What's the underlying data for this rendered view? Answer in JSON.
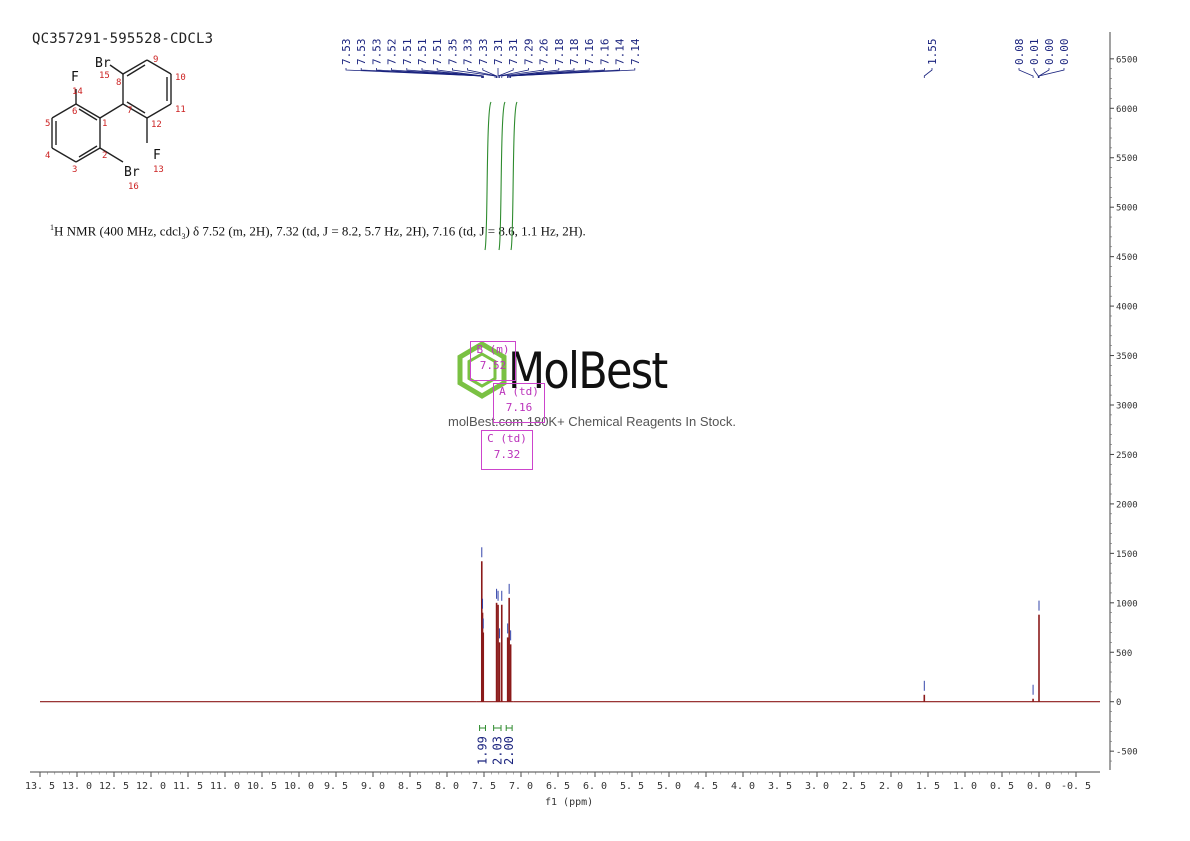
{
  "sample_id": "QC357291-595528-CDCL3",
  "description": {
    "prefix": "1",
    "text": "H NMR (400 MHz, cdcl",
    "sub": "3",
    "rest": ") δ 7.52 (m, 2H), 7.32 (td, J = 8.2, 5.7 Hz, 2H), 7.16 (td, J = 8.6, 1.1 Hz, 2H)."
  },
  "watermark": {
    "logo": "MolBest",
    "tagline": "molBest.com 180K+ Chemical Reagents In Stock."
  },
  "structure": {
    "atoms": [
      "F",
      "14",
      "6",
      "5",
      "4",
      "3",
      "2",
      "1",
      "Br",
      "16",
      "Br",
      "15",
      "8",
      "7",
      "9",
      "10",
      "11",
      "12",
      "F",
      "13"
    ]
  },
  "multiplet_boxes": [
    {
      "label": "B (m)",
      "shift": "7.52"
    },
    {
      "label": "A (td)",
      "shift": "7.16"
    },
    {
      "label": "C (td)",
      "shift": "7.32"
    }
  ],
  "peak_labels": [
    "7.53",
    "7.53",
    "7.53",
    "7.52",
    "7.51",
    "7.51",
    "7.51",
    "7.35",
    "7.33",
    "7.33",
    "7.31",
    "7.31",
    "7.29",
    "7.26",
    "7.18",
    "7.18",
    "7.16",
    "7.16",
    "7.14",
    "7.14",
    "1.55",
    "0.08",
    "0.01",
    "0.00",
    "0.00"
  ],
  "chart_data": {
    "type": "line",
    "title": "",
    "xlabel": "f1 (ppm)",
    "ylabel": "",
    "xlim": [
      13.5,
      -0.5
    ],
    "ylim": [
      -650,
      6650
    ],
    "x_ticks": [
      "13.5",
      "13.0",
      "12.5",
      "12.0",
      "11.5",
      "11.0",
      "10.5",
      "10.0",
      "9.5",
      "9.0",
      "8.5",
      "8.0",
      "7.5",
      "7.0",
      "6.5",
      "6.0",
      "5.5",
      "5.0",
      "4.5",
      "4.0",
      "3.5",
      "3.0",
      "2.5",
      "2.0",
      "1.5",
      "1.0",
      "0.5",
      "0.0",
      "-0.5"
    ],
    "y_ticks": [
      "6500",
      "6000",
      "5500",
      "5000",
      "4500",
      "4000",
      "3500",
      "3000",
      "2500",
      "2000",
      "1500",
      "1000",
      "500",
      "0",
      "-500"
    ],
    "spectrum_peaks": [
      {
        "ppm": 7.53,
        "height": 1420
      },
      {
        "ppm": 7.52,
        "height": 900
      },
      {
        "ppm": 7.51,
        "height": 700
      },
      {
        "ppm": 7.33,
        "height": 1000
      },
      {
        "ppm": 7.31,
        "height": 980
      },
      {
        "ppm": 7.29,
        "height": 600
      },
      {
        "ppm": 7.26,
        "height": 980
      },
      {
        "ppm": 7.18,
        "height": 650
      },
      {
        "ppm": 7.16,
        "height": 1050
      },
      {
        "ppm": 7.14,
        "height": 580
      },
      {
        "ppm": 1.55,
        "height": 70
      },
      {
        "ppm": 0.08,
        "height": 30
      },
      {
        "ppm": 0.0,
        "height": 880
      }
    ],
    "integrals": [
      {
        "range": [
          7.56,
          7.48
        ],
        "value": "1.99"
      },
      {
        "range": [
          7.37,
          7.27
        ],
        "value": "2.03"
      },
      {
        "range": [
          7.2,
          7.12
        ],
        "value": "2.00"
      }
    ],
    "colors": {
      "spectrum": "#8b1a1a",
      "peak_label": "#1a237e",
      "integral": "#2e8b2e",
      "box": "#cc44cc",
      "logo": "#7ac143"
    }
  }
}
